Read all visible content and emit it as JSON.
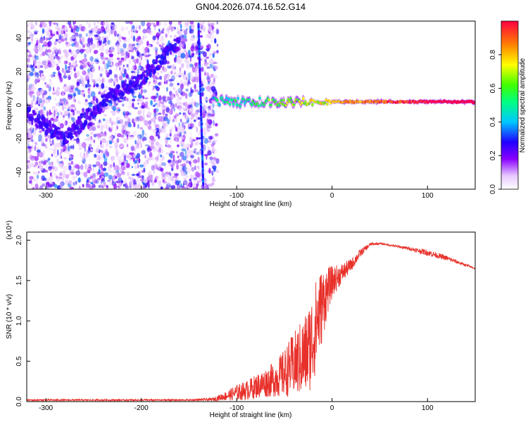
{
  "title": "GN04.2026.074.16.52.G14",
  "chart_data": [
    {
      "type": "heatmap",
      "xlabel": "Height of straight line (km)",
      "ylabel": "Frequency (Hz)",
      "xlim": [
        -320,
        150
      ],
      "ylim": [
        -50,
        50
      ],
      "xticks": [
        -300,
        -200,
        -100,
        0,
        100
      ],
      "yticks": [
        -40,
        -20,
        0,
        20,
        40
      ],
      "colorbar": {
        "label": "Normalized spectral amplitude",
        "range": [
          0,
          1
        ],
        "ticks": [
          0.0,
          0.2,
          0.4,
          0.6,
          0.8
        ],
        "tick_labels": [
          "0.0",
          "0.2",
          "0.4",
          "0.6",
          "0.8"
        ]
      },
      "features": {
        "noise_region_x": [
          -320,
          -120
        ],
        "diagonal_trace": [
          [
            -320,
            -5
          ],
          [
            -280,
            -20
          ],
          [
            -240,
            2
          ],
          [
            -200,
            15
          ],
          [
            -160,
            38
          ]
        ],
        "vertical_trace": [
          [
            -140,
            48
          ],
          [
            -135,
            -48
          ]
        ],
        "tone_frequency": 2,
        "tone_start_x": -125,
        "tone_end_x": 150
      }
    },
    {
      "type": "line",
      "xlabel": "Height of straight line (km)",
      "ylabel": "SNR (10 * v/v)",
      "y_multiplier": "(x10⁴)",
      "xlim": [
        -320,
        150
      ],
      "ylim": [
        0,
        2.1
      ],
      "xticks": [
        -300,
        -200,
        -100,
        0,
        100
      ],
      "yticks": [
        0.0,
        0.5,
        1.0,
        1.5,
        2.0
      ],
      "ytick_labels": [
        "0.0",
        "0.5",
        "1.0",
        "1.5",
        "2.0"
      ],
      "series": [
        {
          "color": "#e8302a",
          "x": [
            -320,
            -250,
            -200,
            -150,
            -125,
            -110,
            -100,
            -90,
            -80,
            -70,
            -60,
            -50,
            -45,
            -40,
            -35,
            -30,
            -25,
            -20,
            -15,
            -10,
            -5,
            0,
            10,
            20,
            30,
            40,
            50,
            60,
            80,
            100,
            120,
            150
          ],
          "y": [
            0.02,
            0.02,
            0.02,
            0.02,
            0.03,
            0.08,
            0.12,
            0.15,
            0.2,
            0.25,
            0.3,
            0.38,
            0.45,
            0.5,
            0.55,
            0.6,
            0.7,
            0.85,
            1.1,
            1.25,
            1.4,
            1.5,
            1.6,
            1.7,
            1.85,
            1.95,
            1.96,
            1.94,
            1.9,
            1.85,
            1.78,
            1.65
          ],
          "noise_amp": [
            0.01,
            0.01,
            0.01,
            0.01,
            0.02,
            0.06,
            0.1,
            0.12,
            0.15,
            0.18,
            0.22,
            0.3,
            0.35,
            0.4,
            0.45,
            0.5,
            0.55,
            0.6,
            0.55,
            0.45,
            0.3,
            0.2,
            0.12,
            0.08,
            0.05,
            0.02,
            0.01,
            0.01,
            0.02,
            0.04,
            0.03,
            0.01
          ]
        }
      ]
    }
  ]
}
